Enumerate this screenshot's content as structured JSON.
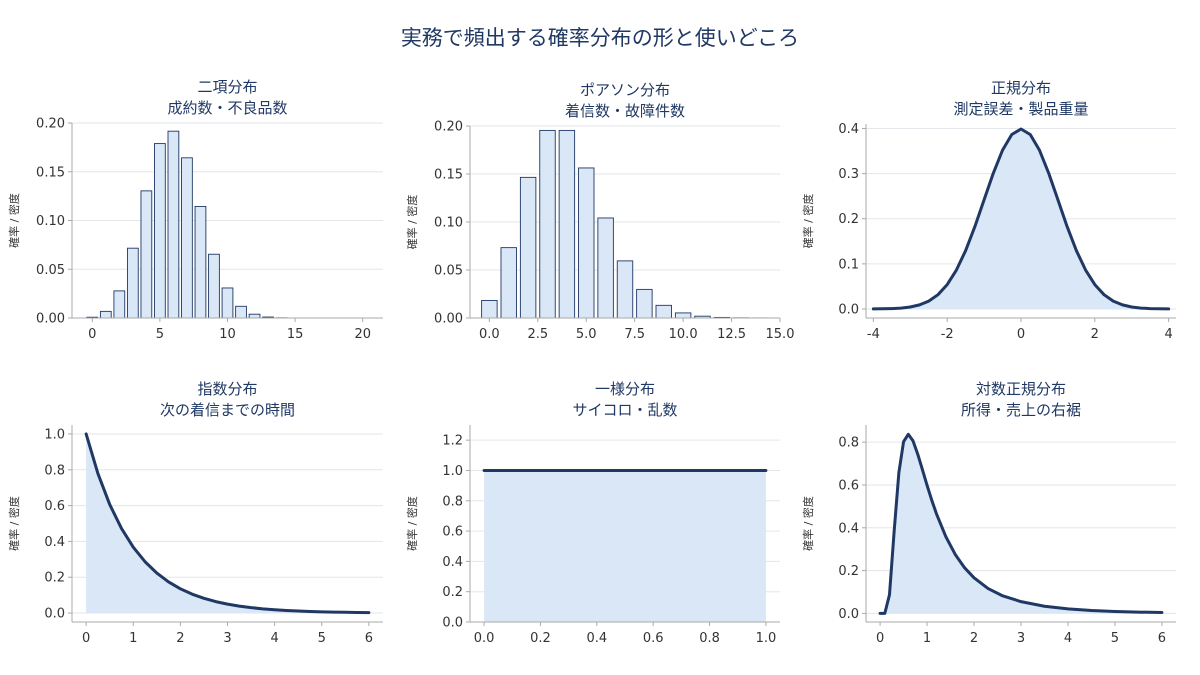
{
  "figure": {
    "title": "実務で頻出する確率分布の形と使いどころ"
  },
  "colors": {
    "line": "#1f3864",
    "fill": "#dae7f6",
    "grid": "#e3e6ea",
    "axis": "#aaaaaa",
    "text": "#1f3864",
    "tick_text": "#333333"
  },
  "chart_data": [
    {
      "id": "binomial",
      "type": "bar",
      "title": "二項分布",
      "subtitle": "成約数・不良品数",
      "ylabel": "確率 / 密度",
      "xlim": [
        -1.5,
        21.5
      ],
      "ylim": [
        0,
        0.2
      ],
      "xticks": [
        0,
        5,
        10,
        15,
        20
      ],
      "yticks": [
        0.0,
        0.05,
        0.1,
        0.15,
        0.2
      ],
      "x_tick_labels": [
        "0",
        "5",
        "10",
        "15",
        "20"
      ],
      "y_tick_labels": [
        "0.00",
        "0.05",
        "0.10",
        "0.15",
        "0.20"
      ],
      "x": [
        0,
        1,
        2,
        3,
        4,
        5,
        6,
        7,
        8,
        9,
        10,
        11,
        12,
        13,
        14,
        15,
        16,
        17,
        18,
        19,
        20
      ],
      "values": [
        0.0008,
        0.0068,
        0.0278,
        0.0716,
        0.1304,
        0.1789,
        0.1916,
        0.1643,
        0.1144,
        0.0654,
        0.0308,
        0.012,
        0.0039,
        0.001,
        0.0002,
        0.0,
        0.0,
        0.0,
        0.0,
        0.0,
        0.0
      ]
    },
    {
      "id": "poisson",
      "type": "bar",
      "title": "ポアソン分布",
      "subtitle": "着信数・故障件数",
      "ylabel": "確率 / 密度",
      "xlim": [
        -1.0,
        15.0
      ],
      "ylim": [
        0,
        0.2
      ],
      "xticks": [
        0,
        2.5,
        5,
        7.5,
        10,
        12.5,
        15
      ],
      "yticks": [
        0.0,
        0.05,
        0.1,
        0.15,
        0.2
      ],
      "x_tick_labels": [
        "0.0",
        "2.5",
        "5.0",
        "7.5",
        "10.0",
        "12.5",
        "15.0"
      ],
      "y_tick_labels": [
        "0.00",
        "0.05",
        "0.10",
        "0.15",
        "0.20"
      ],
      "x": [
        0,
        1,
        2,
        3,
        4,
        5,
        6,
        7,
        8,
        9,
        10,
        11,
        12,
        13,
        14,
        15
      ],
      "values": [
        0.0183,
        0.0733,
        0.1465,
        0.1954,
        0.1954,
        0.1563,
        0.1042,
        0.0595,
        0.0298,
        0.0132,
        0.0053,
        0.0019,
        0.0006,
        0.0002,
        0.0001,
        0.0
      ]
    },
    {
      "id": "normal",
      "type": "area",
      "title": "正規分布",
      "subtitle": "測定誤差・製品重量",
      "ylabel": "確率 / 密度",
      "xlim": [
        -4.2,
        4.2
      ],
      "ylim": [
        -0.02,
        0.41
      ],
      "xticks": [
        -4,
        -2,
        0,
        2,
        4
      ],
      "yticks": [
        0.0,
        0.1,
        0.2,
        0.3,
        0.4
      ],
      "x_tick_labels": [
        "-4",
        "-2",
        "0",
        "2",
        "4"
      ],
      "y_tick_labels": [
        "0.0",
        "0.1",
        "0.2",
        "0.3",
        "0.4"
      ],
      "x": [
        -4,
        -3.75,
        -3.5,
        -3.25,
        -3,
        -2.75,
        -2.5,
        -2.25,
        -2,
        -1.75,
        -1.5,
        -1.25,
        -1,
        -0.75,
        -0.5,
        -0.25,
        0,
        0.25,
        0.5,
        0.75,
        1,
        1.25,
        1.5,
        1.75,
        2,
        2.25,
        2.5,
        2.75,
        3,
        3.25,
        3.5,
        3.75,
        4
      ],
      "y": [
        0.0001,
        0.0004,
        0.0009,
        0.002,
        0.0044,
        0.0091,
        0.0175,
        0.0317,
        0.054,
        0.0863,
        0.1295,
        0.1826,
        0.242,
        0.3011,
        0.3521,
        0.3867,
        0.3989,
        0.3867,
        0.3521,
        0.3011,
        0.242,
        0.1826,
        0.1295,
        0.0863,
        0.054,
        0.0317,
        0.0175,
        0.0091,
        0.0044,
        0.002,
        0.0009,
        0.0004,
        0.0001
      ]
    },
    {
      "id": "exponential",
      "type": "area",
      "title": "指数分布",
      "subtitle": "次の着信までの時間",
      "ylabel": "確率 / 密度",
      "xlim": [
        -0.3,
        6.3
      ],
      "ylim": [
        -0.05,
        1.05
      ],
      "xticks": [
        0,
        1,
        2,
        3,
        4,
        5,
        6
      ],
      "yticks": [
        0.0,
        0.2,
        0.4,
        0.6,
        0.8,
        1.0
      ],
      "x_tick_labels": [
        "0",
        "1",
        "2",
        "3",
        "4",
        "5",
        "6"
      ],
      "y_tick_labels": [
        "0.0",
        "0.2",
        "0.4",
        "0.6",
        "0.8",
        "1.0"
      ],
      "x": [
        0,
        0.25,
        0.5,
        0.75,
        1,
        1.25,
        1.5,
        1.75,
        2,
        2.25,
        2.5,
        2.75,
        3,
        3.25,
        3.5,
        3.75,
        4,
        4.25,
        4.5,
        4.75,
        5,
        5.25,
        5.5,
        5.75,
        6
      ],
      "y": [
        1.0,
        0.7788,
        0.6065,
        0.4724,
        0.3679,
        0.2865,
        0.2231,
        0.1738,
        0.1353,
        0.1054,
        0.0821,
        0.0639,
        0.0498,
        0.0388,
        0.0302,
        0.0235,
        0.0183,
        0.0143,
        0.0111,
        0.0087,
        0.0067,
        0.0052,
        0.0041,
        0.0032,
        0.0025
      ]
    },
    {
      "id": "uniform",
      "type": "area",
      "title": "一様分布",
      "subtitle": "サイコロ・乱数",
      "ylabel": "確率 / 密度",
      "xlim": [
        -0.05,
        1.05
      ],
      "ylim": [
        0,
        1.3
      ],
      "xticks": [
        0,
        0.2,
        0.4,
        0.6,
        0.8,
        1.0
      ],
      "yticks": [
        0.0,
        0.2,
        0.4,
        0.6,
        0.8,
        1.0,
        1.2
      ],
      "x_tick_labels": [
        "0.0",
        "0.2",
        "0.4",
        "0.6",
        "0.8",
        "1.0"
      ],
      "y_tick_labels": [
        "0.0",
        "0.2",
        "0.4",
        "0.6",
        "0.8",
        "1.0",
        "1.2"
      ],
      "x": [
        0,
        1
      ],
      "y": [
        1.0,
        1.0
      ]
    },
    {
      "id": "lognormal",
      "type": "area",
      "title": "対数正規分布",
      "subtitle": "所得・売上の右裾",
      "ylabel": "確率 / 密度",
      "xlim": [
        -0.3,
        6.3
      ],
      "ylim": [
        -0.04,
        0.88
      ],
      "xticks": [
        0,
        1,
        2,
        3,
        4,
        5,
        6
      ],
      "yticks": [
        0.0,
        0.2,
        0.4,
        0.6,
        0.8
      ],
      "x_tick_labels": [
        "0",
        "1",
        "2",
        "3",
        "4",
        "5",
        "6"
      ],
      "y_tick_labels": [
        "0.0",
        "0.2",
        "0.4",
        "0.6",
        "0.8"
      ],
      "x": [
        0,
        0.1,
        0.2,
        0.3,
        0.4,
        0.5,
        0.6,
        0.7,
        0.8,
        0.9,
        1.0,
        1.1,
        1.2,
        1.4,
        1.6,
        1.8,
        2.0,
        2.3,
        2.6,
        3.0,
        3.5,
        4.0,
        4.5,
        5.0,
        5.5,
        6.0
      ],
      "y": [
        0.0,
        0.0,
        0.0873,
        0.3857,
        0.6579,
        0.8021,
        0.8366,
        0.8064,
        0.7448,
        0.6727,
        0.5984,
        0.5288,
        0.4655,
        0.3582,
        0.2754,
        0.213,
        0.1663,
        0.1163,
        0.0831,
        0.0551,
        0.0334,
        0.0211,
        0.0138,
        0.0091,
        0.0062,
        0.0043
      ]
    }
  ]
}
